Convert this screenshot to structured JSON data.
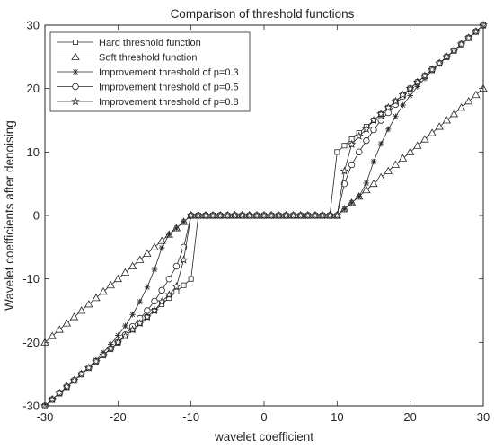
{
  "chart_data": {
    "type": "line",
    "title": "Comparison of threshold functions",
    "xlabel": "wavelet coefficient",
    "ylabel": "Wavelet coefficients after denoising",
    "xlim": [
      -30,
      30
    ],
    "ylim": [
      -30,
      30
    ],
    "xticks": [
      -30,
      -20,
      -10,
      0,
      10,
      20,
      30
    ],
    "yticks": [
      -30,
      -20,
      -10,
      0,
      10,
      20,
      30
    ],
    "grid": false,
    "legend_position": "top-left",
    "x": [
      -30,
      -29,
      -28,
      -27,
      -26,
      -25,
      -24,
      -23,
      -22,
      -21,
      -20,
      -19,
      -18,
      -17,
      -16,
      -15,
      -14,
      -13,
      -12,
      -11,
      -10,
      -9,
      -8,
      -7,
      -6,
      -5,
      -4,
      -3,
      -2,
      -1,
      0,
      1,
      2,
      3,
      4,
      5,
      6,
      7,
      8,
      9,
      10,
      11,
      12,
      13,
      14,
      15,
      16,
      17,
      18,
      19,
      20,
      21,
      22,
      23,
      24,
      25,
      26,
      27,
      28,
      29,
      30
    ],
    "series": [
      {
        "name": "Hard threshold function",
        "marker": "square",
        "values": [
          -30,
          -29,
          -28,
          -27,
          -26,
          -25,
          -24,
          -23,
          -22,
          -21,
          -20,
          -19,
          -18,
          -17,
          -16,
          -15,
          -14,
          -13,
          -12,
          -11,
          -10,
          0,
          0,
          0,
          0,
          0,
          0,
          0,
          0,
          0,
          0,
          0,
          0,
          0,
          0,
          0,
          0,
          0,
          0,
          0,
          10,
          11,
          12,
          13,
          14,
          15,
          16,
          17,
          18,
          19,
          20,
          21,
          22,
          23,
          24,
          25,
          26,
          27,
          28,
          29,
          30
        ]
      },
      {
        "name": "Soft threshold function",
        "marker": "triangle",
        "values": [
          -20,
          -19,
          -18,
          -17,
          -16,
          -15,
          -14,
          -13,
          -12,
          -11,
          -10,
          -9,
          -8,
          -7,
          -6,
          -5,
          -4,
          -3,
          -2,
          -1,
          0,
          0,
          0,
          0,
          0,
          0,
          0,
          0,
          0,
          0,
          0,
          0,
          0,
          0,
          0,
          0,
          0,
          0,
          0,
          0,
          0,
          1,
          2,
          3,
          4,
          5,
          6,
          7,
          8,
          9,
          10,
          11,
          12,
          13,
          14,
          15,
          16,
          17,
          18,
          19,
          20
        ]
      },
      {
        "name": "Improvement threshold of p=0.3",
        "marker": "asterisk",
        "values": [
          -30,
          -29,
          -28,
          -27,
          -26,
          -25,
          -23.9,
          -22.8,
          -21.6,
          -20.3,
          -18.9,
          -17.4,
          -15.6,
          -13.6,
          -11.3,
          -8.5,
          -5.1,
          -3,
          -2,
          -1,
          0,
          0,
          0,
          0,
          0,
          0,
          0,
          0,
          0,
          0,
          0,
          0,
          0,
          0,
          0,
          0,
          0,
          0,
          0,
          0,
          0,
          1,
          2,
          3,
          5.1,
          8.5,
          11.3,
          13.6,
          15.6,
          17.4,
          18.9,
          20.3,
          21.6,
          22.8,
          23.9,
          25,
          26,
          27,
          28,
          29,
          30
        ]
      },
      {
        "name": "Improvement threshold of p=0.5",
        "marker": "circle",
        "values": [
          -30,
          -29,
          -28,
          -27,
          -26,
          -25,
          -24,
          -23,
          -22,
          -21,
          -20,
          -18.8,
          -17.5,
          -16.2,
          -15,
          -13.5,
          -11.8,
          -10,
          -8,
          -5,
          0,
          0,
          0,
          0,
          0,
          0,
          0,
          0,
          0,
          0,
          0,
          0,
          0,
          0,
          0,
          0,
          0,
          0,
          0,
          0,
          0,
          5,
          8,
          10,
          11.8,
          13.5,
          15,
          16.2,
          17.5,
          18.8,
          20,
          21,
          22,
          23,
          24,
          25,
          26,
          27,
          28,
          29,
          30
        ]
      },
      {
        "name": "Improvement threshold of p=0.8",
        "marker": "pentagram",
        "values": [
          -30,
          -29,
          -28,
          -27,
          -26,
          -25,
          -24,
          -23,
          -22,
          -21,
          -20,
          -19,
          -18,
          -17,
          -16,
          -15,
          -13.6,
          -12.5,
          -11.2,
          -7,
          0,
          0,
          0,
          0,
          0,
          0,
          0,
          0,
          0,
          0,
          0,
          0,
          0,
          0,
          0,
          0,
          0,
          0,
          0,
          0,
          0,
          7,
          11.2,
          12.5,
          13.6,
          15,
          16,
          17,
          18,
          19,
          20,
          21,
          22,
          23,
          24,
          25,
          26,
          27,
          28,
          29,
          30
        ]
      }
    ]
  }
}
